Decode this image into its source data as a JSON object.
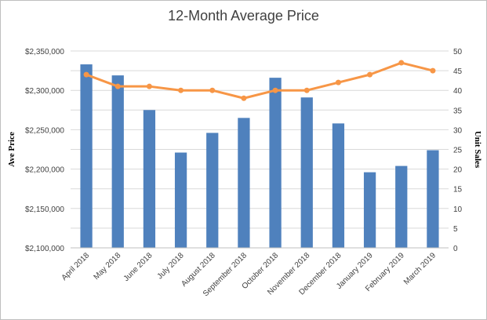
{
  "chart_data": {
    "type": "bar",
    "title": "12-Month Average Price",
    "categories": [
      "April 2018",
      "May 2018",
      "June 2018",
      "July 2018",
      "August 2018",
      "September 2018",
      "October 2018",
      "November 2018",
      "December 2018",
      "January 2019",
      "February 2019",
      "March 2019"
    ],
    "series": [
      {
        "kind": "bar",
        "axis": "left",
        "color": "#4f81bd",
        "values": [
          2333000,
          2319000,
          2275000,
          2221000,
          2246000,
          2265000,
          2316000,
          2291000,
          2258000,
          2196000,
          2204000,
          2224000
        ]
      },
      {
        "kind": "line",
        "axis": "right",
        "color": "#f79646",
        "values": [
          44,
          41,
          41,
          40,
          40,
          38,
          40,
          40,
          42,
          44,
          47,
          45
        ]
      }
    ],
    "ylabel": "Ave Price",
    "y2label": "Unit Sales",
    "ylim": [
      2100000,
      2350000
    ],
    "y2lim": [
      0,
      50
    ],
    "yticks": [
      "$2,100,000",
      "$2,150,000",
      "$2,200,000",
      "$2,250,000",
      "$2,300,000",
      "$2,350,000"
    ],
    "y2ticks": [
      "0",
      "5",
      "10",
      "15",
      "20",
      "25",
      "30",
      "35",
      "40",
      "45",
      "50"
    ],
    "grid": true
  }
}
